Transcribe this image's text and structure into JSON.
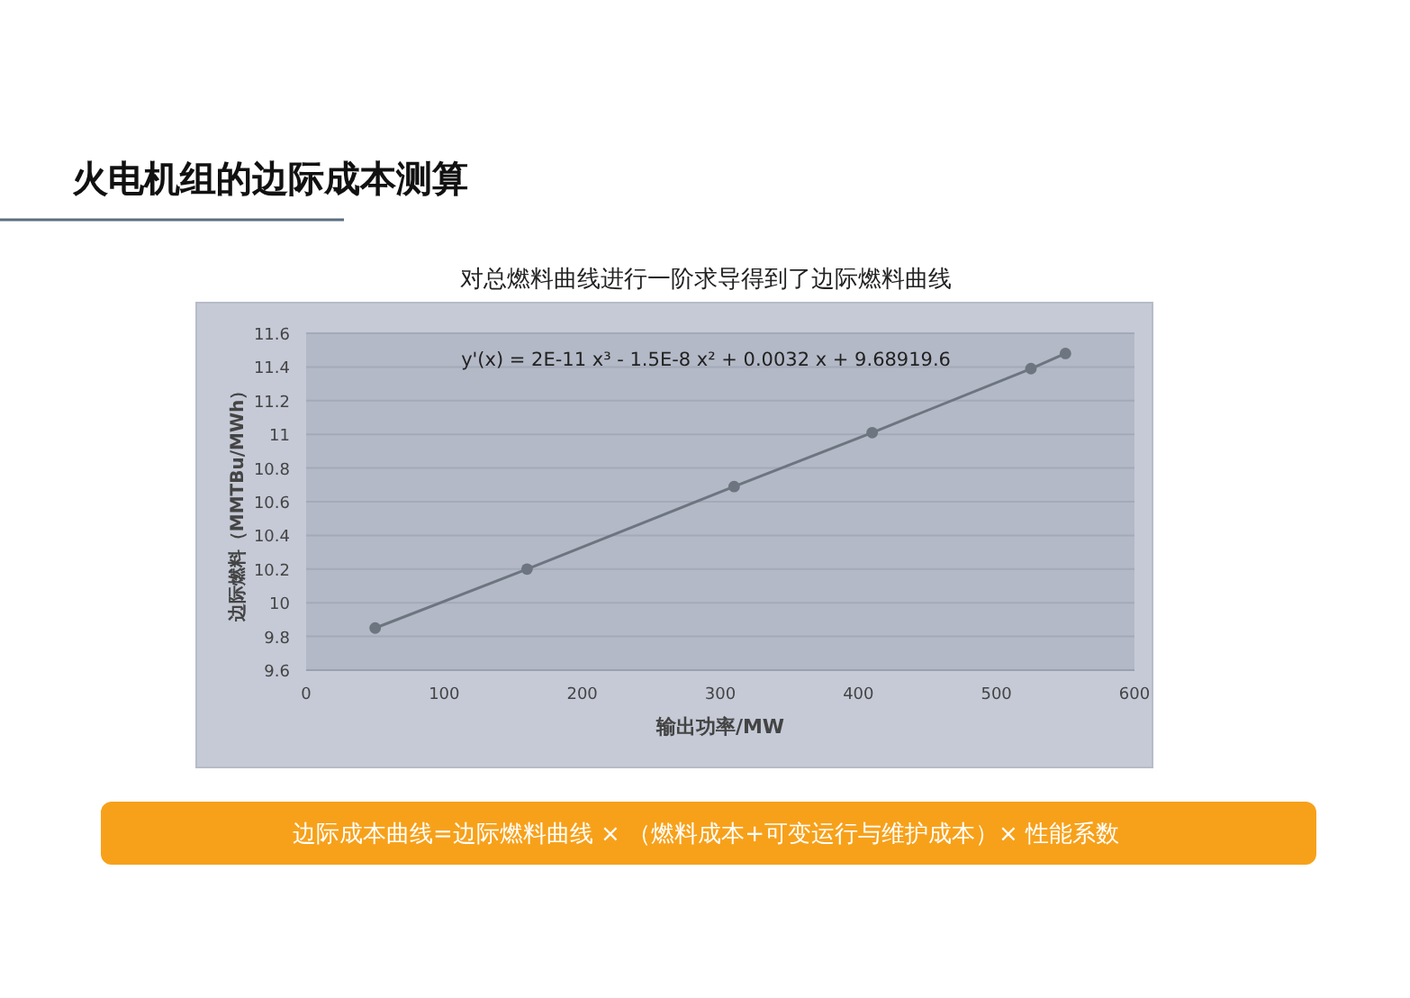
{
  "chart_data": {
    "type": "line",
    "title": "火电机组的边际成本测算",
    "subtitle": "对总燃料曲线进行一阶求导得到了边际燃料曲线",
    "xlabel": "输出功率/MW",
    "ylabel": "边际燃料（MMTBu/MWh）",
    "x": [
      50,
      160,
      310,
      410,
      525,
      550
    ],
    "values": [
      9.85,
      10.2,
      10.69,
      11.01,
      11.39,
      11.48
    ],
    "color": "#6d7580",
    "marker": "circle",
    "grid": "y",
    "xlim": [
      0,
      600
    ],
    "xticks": [
      0,
      100,
      200,
      300,
      400,
      500,
      600
    ],
    "ylim": [
      9.6,
      11.6
    ],
    "yticks": [
      9.6,
      9.8,
      10,
      10.2,
      10.4,
      10.6,
      10.8,
      11,
      11.2,
      11.4,
      11.6
    ],
    "annotations": [
      "y'(x) = 2E-11 x³ - 1.5E-8 x² + 0.0032 x + 9.68919.6",
      "边际成本曲线=边际燃料曲线 × （燃料成本+可变运行与维护成本）× 性能系数"
    ]
  }
}
